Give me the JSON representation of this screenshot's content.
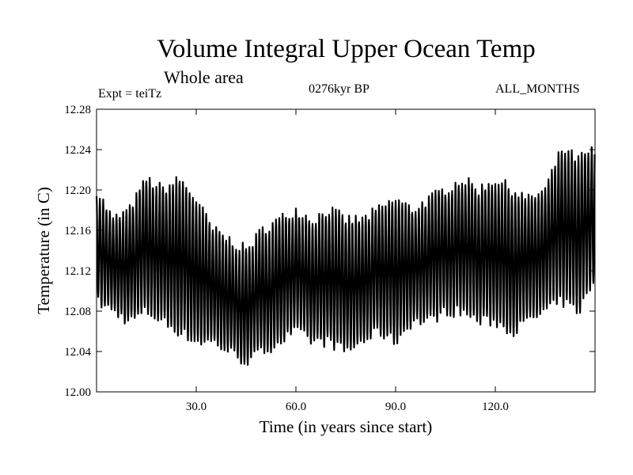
{
  "header": {
    "title": "Volume Integral Upper Ocean Temp",
    "subtitle": "Whole area",
    "experiment": "Expt = teiTz",
    "period": "0276kyr BP",
    "months": "ALL_MONTHS"
  },
  "chart_data": {
    "type": "line",
    "title": "Volume Integral Upper Ocean Temp",
    "subtitle": "Whole area",
    "xlabel": "Time (in years since start)",
    "ylabel": "Temperature (in C)",
    "xlim": [
      0,
      150
    ],
    "ylim": [
      12.0,
      12.28
    ],
    "xticks": [
      30,
      60,
      90,
      120
    ],
    "xtick_labels": [
      "30.0",
      "60.0",
      "90.0",
      "120.0"
    ],
    "yticks": [
      12.0,
      12.04,
      12.08,
      12.12,
      12.16,
      12.2,
      12.24,
      12.28
    ],
    "ytick_labels": [
      "12.00",
      "12.04",
      "12.08",
      "12.12",
      "12.16",
      "12.20",
      "12.24",
      "12.28"
    ],
    "series": [
      {
        "name": "Upper ocean temperature",
        "cycle": "annual (all months)",
        "time_years": [
          0,
          5,
          10,
          15,
          20,
          25,
          30,
          35,
          40,
          45,
          50,
          55,
          60,
          65,
          70,
          75,
          80,
          85,
          90,
          95,
          100,
          105,
          110,
          115,
          120,
          125,
          130,
          135,
          140,
          145,
          150
        ],
        "annual_max": [
          12.2,
          12.17,
          12.18,
          12.21,
          12.2,
          12.21,
          12.19,
          12.16,
          12.15,
          12.14,
          12.16,
          12.17,
          12.18,
          12.17,
          12.18,
          12.17,
          12.17,
          12.18,
          12.19,
          12.18,
          12.19,
          12.2,
          12.21,
          12.2,
          12.21,
          12.2,
          12.19,
          12.2,
          12.24,
          12.23,
          12.24
        ],
        "annual_min": [
          12.09,
          12.08,
          12.07,
          12.08,
          12.07,
          12.06,
          12.05,
          12.05,
          12.04,
          12.03,
          12.04,
          12.05,
          12.06,
          12.05,
          12.05,
          12.04,
          12.05,
          12.06,
          12.05,
          12.07,
          12.07,
          12.08,
          12.08,
          12.07,
          12.07,
          12.06,
          12.07,
          12.08,
          12.09,
          12.08,
          12.11
        ]
      }
    ]
  }
}
